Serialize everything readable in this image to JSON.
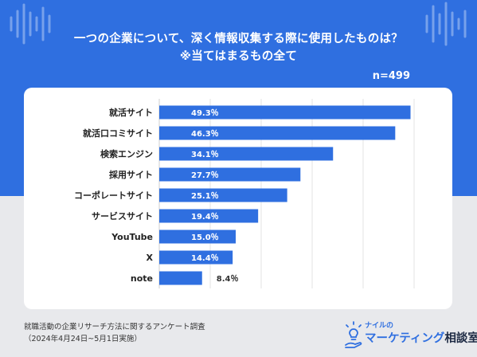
{
  "title": {
    "line1": "一つの企業について、深く情報収集する際に使用したものは？",
    "line2": "※当てはまるもの全て"
  },
  "sample_size": "n=499",
  "footnote": {
    "line1": "就職活動の企業リサーチ方法に関するアンケート調査",
    "line2": "（2024年4月24日~5月1日実施）"
  },
  "logo": {
    "line1": "ナイルの",
    "line2_main": "マーケティング",
    "line2_accent": "相談室",
    "icon": "lightbulb-hand-icon"
  },
  "colors": {
    "header": "#2f6fe0",
    "bar": "#2f6fe0",
    "card": "#ffffff",
    "background": "#e8e9ec"
  },
  "chart_data": {
    "type": "bar",
    "orientation": "horizontal",
    "categories": [
      "就活サイト",
      "就活口コミサイト",
      "検索エンジン",
      "採用サイト",
      "コーポレートサイト",
      "サービスサイト",
      "YouTube",
      "X",
      "note"
    ],
    "values": [
      49.3,
      46.3,
      34.1,
      27.7,
      25.1,
      19.4,
      15.0,
      14.4,
      8.4
    ],
    "value_labels": [
      "49.3％",
      "46.3％",
      "34.1％",
      "27.7％",
      "25.1％",
      "19.4％",
      "15.0％",
      "14.4％",
      "8.4％"
    ],
    "xlim": [
      0,
      50
    ],
    "grid": true,
    "title": "一つの企業について、深く情報収集する際に使用したものは？ ※当てはまるもの全て"
  }
}
